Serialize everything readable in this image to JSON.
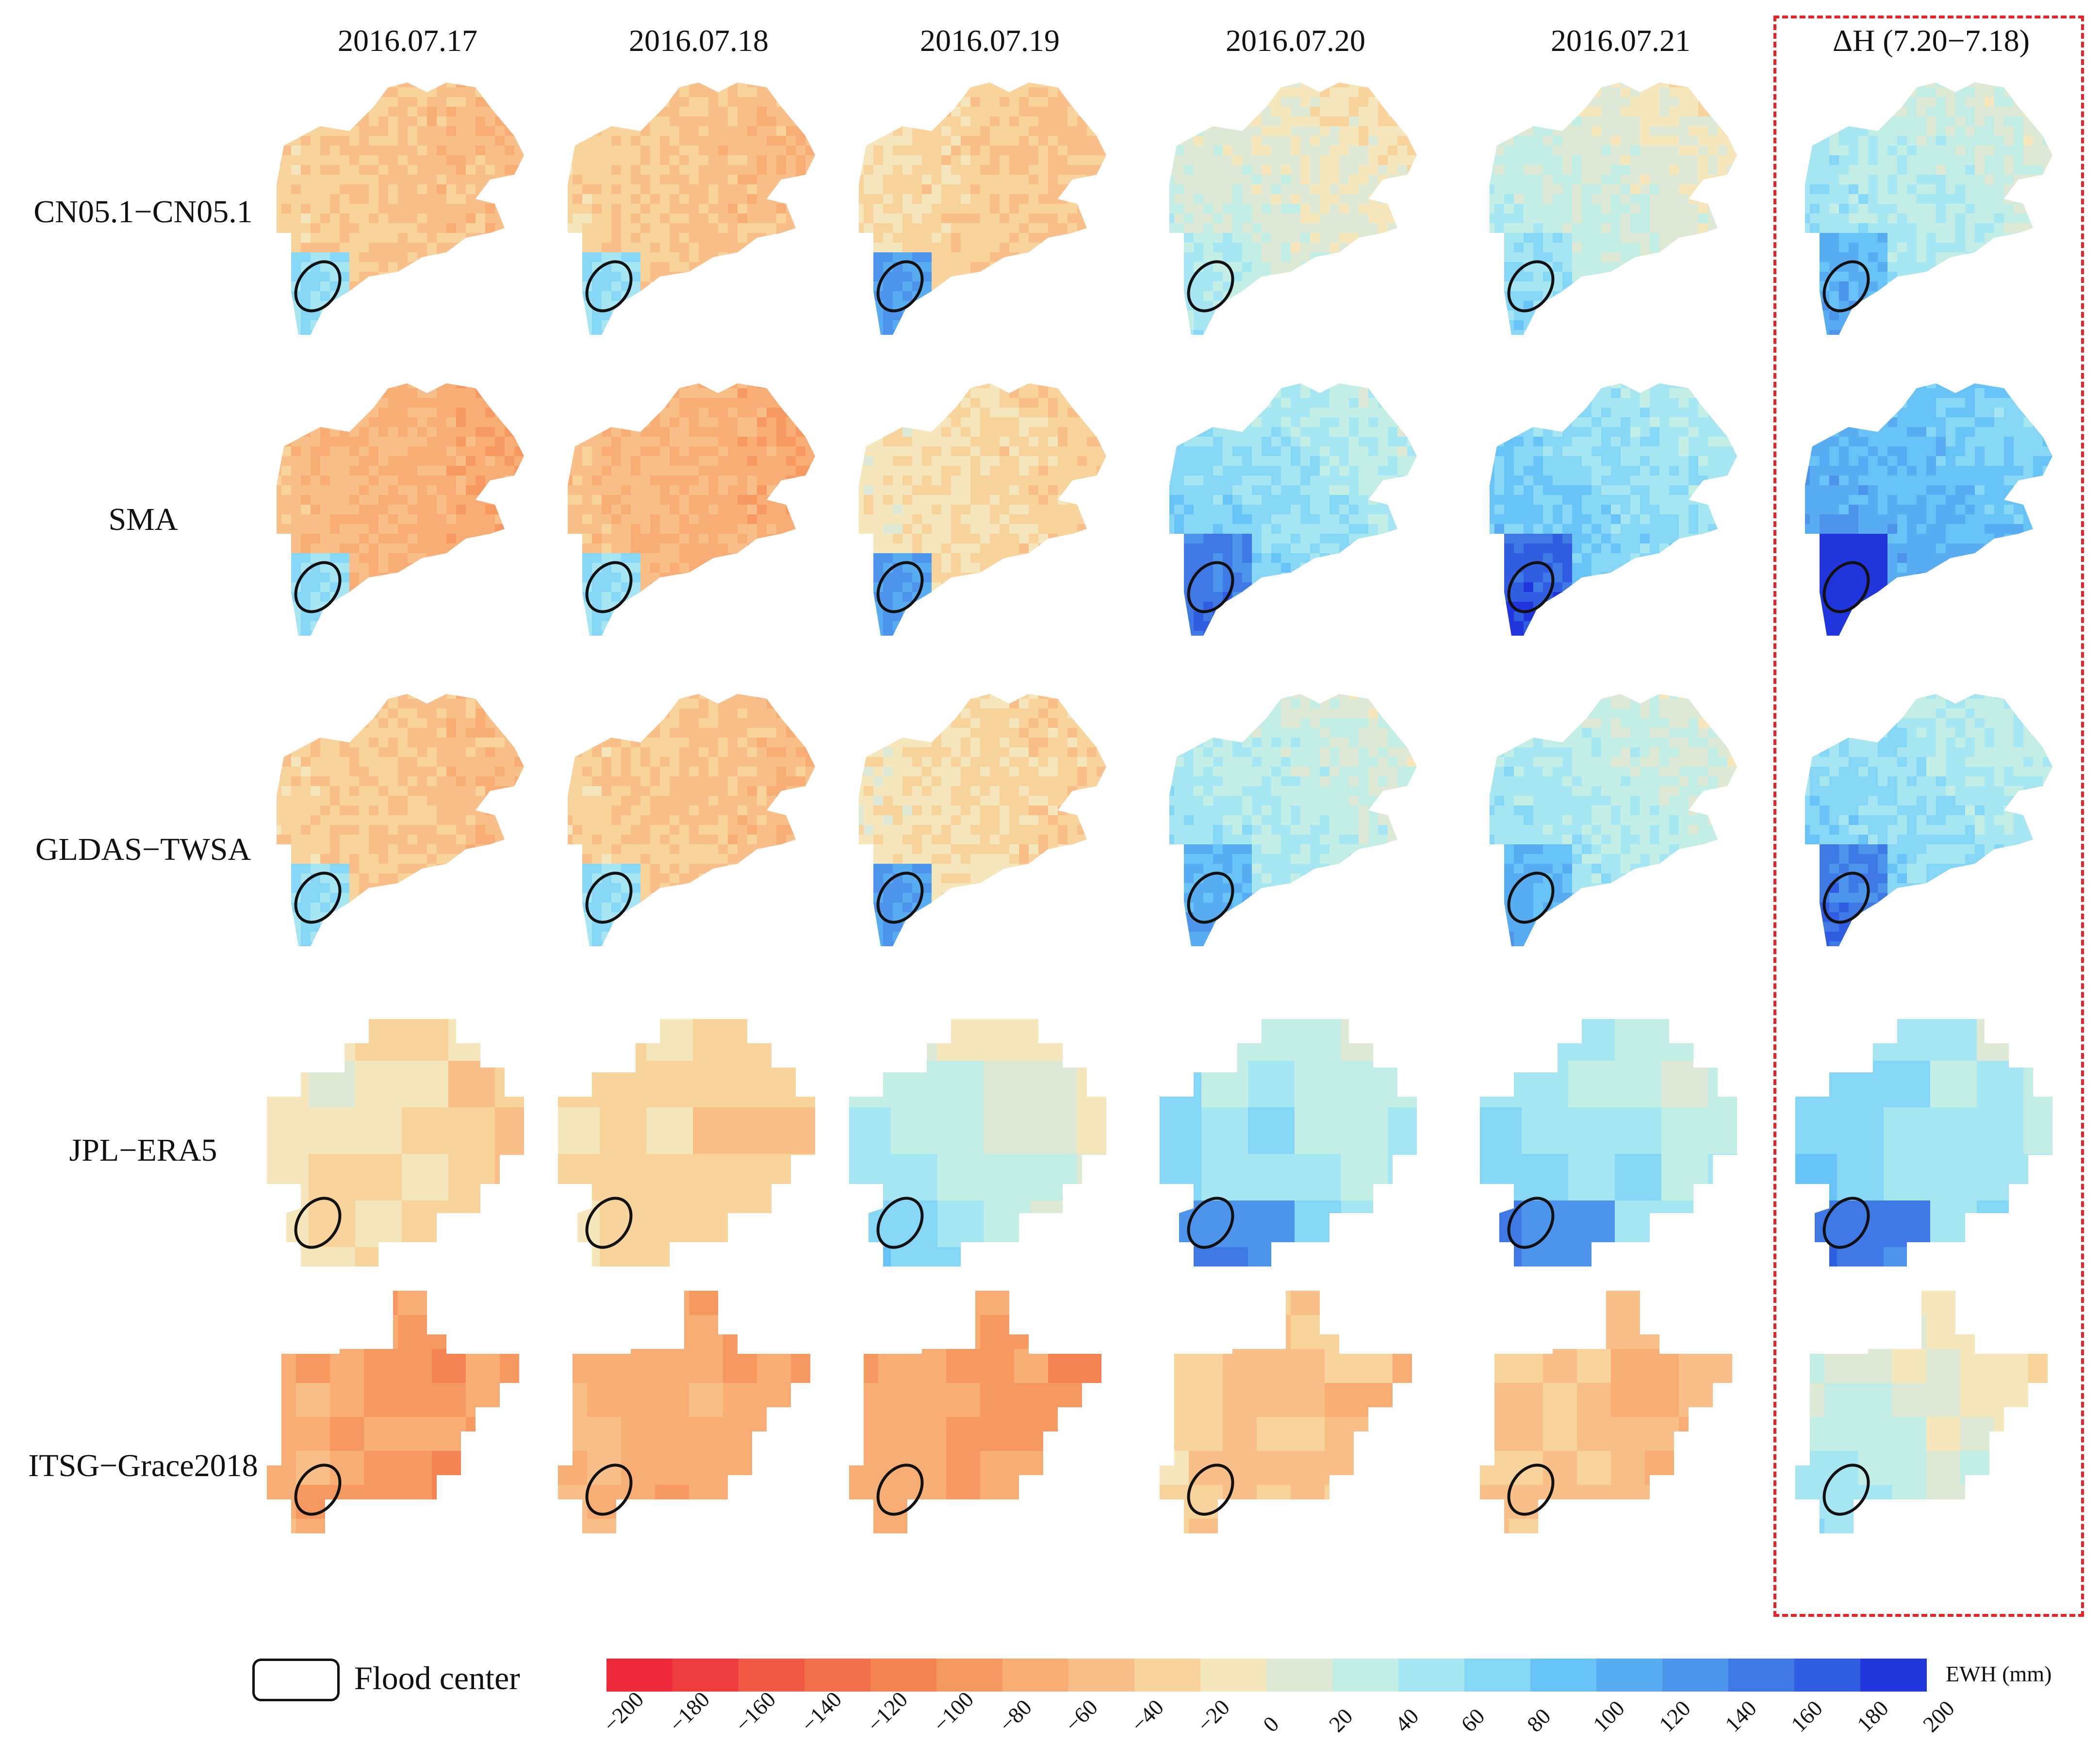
{
  "chart_data": {
    "type": "heatmap",
    "title": "",
    "columns": [
      "2016.07.17",
      "2016.07.18",
      "2016.07.19",
      "2016.07.20",
      "2016.07.21",
      "ΔH (7.20−7.18)"
    ],
    "rows": [
      "CN05.1−CN05.1",
      "SMA",
      "GLDAS−TWSA",
      "JPL−ERA5",
      "ITSG−Grace2018"
    ],
    "units": "EWH (mm)",
    "value_range": [
      -200,
      200
    ],
    "approx_mean_ewh_mm": [
      [
        -40,
        -40,
        -30,
        10,
        20,
        40
      ],
      [
        -60,
        -60,
        -20,
        60,
        70,
        100
      ],
      [
        -40,
        -40,
        -20,
        40,
        40,
        60
      ],
      [
        -20,
        -30,
        20,
        50,
        50,
        60
      ],
      [
        -80,
        -70,
        -80,
        -40,
        -50,
        10
      ]
    ],
    "legend": {
      "flood_center_label": "Flood center"
    },
    "colorbar": {
      "ticks": [
        "−200",
        "−180",
        "−160",
        "−140",
        "−120",
        "−100",
        "−80",
        "−60",
        "−40",
        "−20",
        "0",
        "20",
        "40",
        "60",
        "80",
        "100",
        "120",
        "140",
        "160",
        "180",
        "200"
      ],
      "colors": [
        "#ee2a3a",
        "#ef3c3f",
        "#f05a44",
        "#f26f4b",
        "#f48552",
        "#f59960",
        "#f7ad74",
        "#f8c088",
        "#f9d39c",
        "#f5e6bc",
        "#dde9d4",
        "#c3eee6",
        "#a6e6f2",
        "#86d6f6",
        "#67c2f6",
        "#57acf2",
        "#4c94ec",
        "#3f79e6",
        "#315de2",
        "#2035dc"
      ]
    },
    "highlight": {
      "label": "ΔH (7.20−7.18)",
      "style": "dashed red box"
    }
  }
}
